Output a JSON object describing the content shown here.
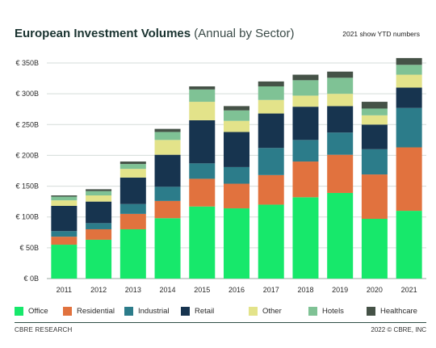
{
  "title_main": "European Investment Volumes",
  "title_sub": "(Annual by Sector)",
  "note": "2021 show YTD numbers",
  "footer_left": "CBRE RESEARCH",
  "footer_right": "2022 © CBRE, INC",
  "chart_data": {
    "type": "bar",
    "stacked": true,
    "categories": [
      "2011",
      "2012",
      "2013",
      "2014",
      "2015",
      "2016",
      "2017",
      "2018",
      "2019",
      "2020",
      "2021"
    ],
    "y_ticks": [
      "€ 0B",
      "€ 50B",
      "€ 100B",
      "€ 150B",
      "€ 200B",
      "€ 250B",
      "€ 300B",
      "€ 350B"
    ],
    "ylim": [
      0,
      350
    ],
    "grid": true,
    "legend_position": "bottom",
    "series": [
      {
        "name": "Office",
        "color": "#17e86b",
        "values": [
          55,
          63,
          80,
          98,
          117,
          114,
          120,
          132,
          139,
          97,
          110
        ]
      },
      {
        "name": "Residential",
        "color": "#e1723e",
        "values": [
          13,
          17,
          25,
          28,
          45,
          40,
          48,
          58,
          62,
          72,
          103
        ]
      },
      {
        "name": "Industrial",
        "color": "#2c7c8a",
        "values": [
          9,
          10,
          16,
          23,
          25,
          27,
          44,
          35,
          36,
          41,
          64
        ]
      },
      {
        "name": "Retail",
        "color": "#17344f",
        "values": [
          41,
          35,
          43,
          52,
          70,
          57,
          56,
          54,
          43,
          40,
          33
        ]
      },
      {
        "name": "Other",
        "color": "#e3e38a",
        "values": [
          9,
          10,
          14,
          24,
          30,
          18,
          22,
          18,
          20,
          15,
          21
        ]
      },
      {
        "name": "Hotels",
        "color": "#7fc295",
        "values": [
          6,
          7,
          8,
          13,
          20,
          17,
          22,
          25,
          26,
          11,
          16
        ]
      },
      {
        "name": "Healthcare",
        "color": "#455247",
        "values": [
          2,
          3,
          4,
          5,
          5,
          7,
          8,
          9,
          10,
          11,
          11
        ]
      }
    ]
  }
}
